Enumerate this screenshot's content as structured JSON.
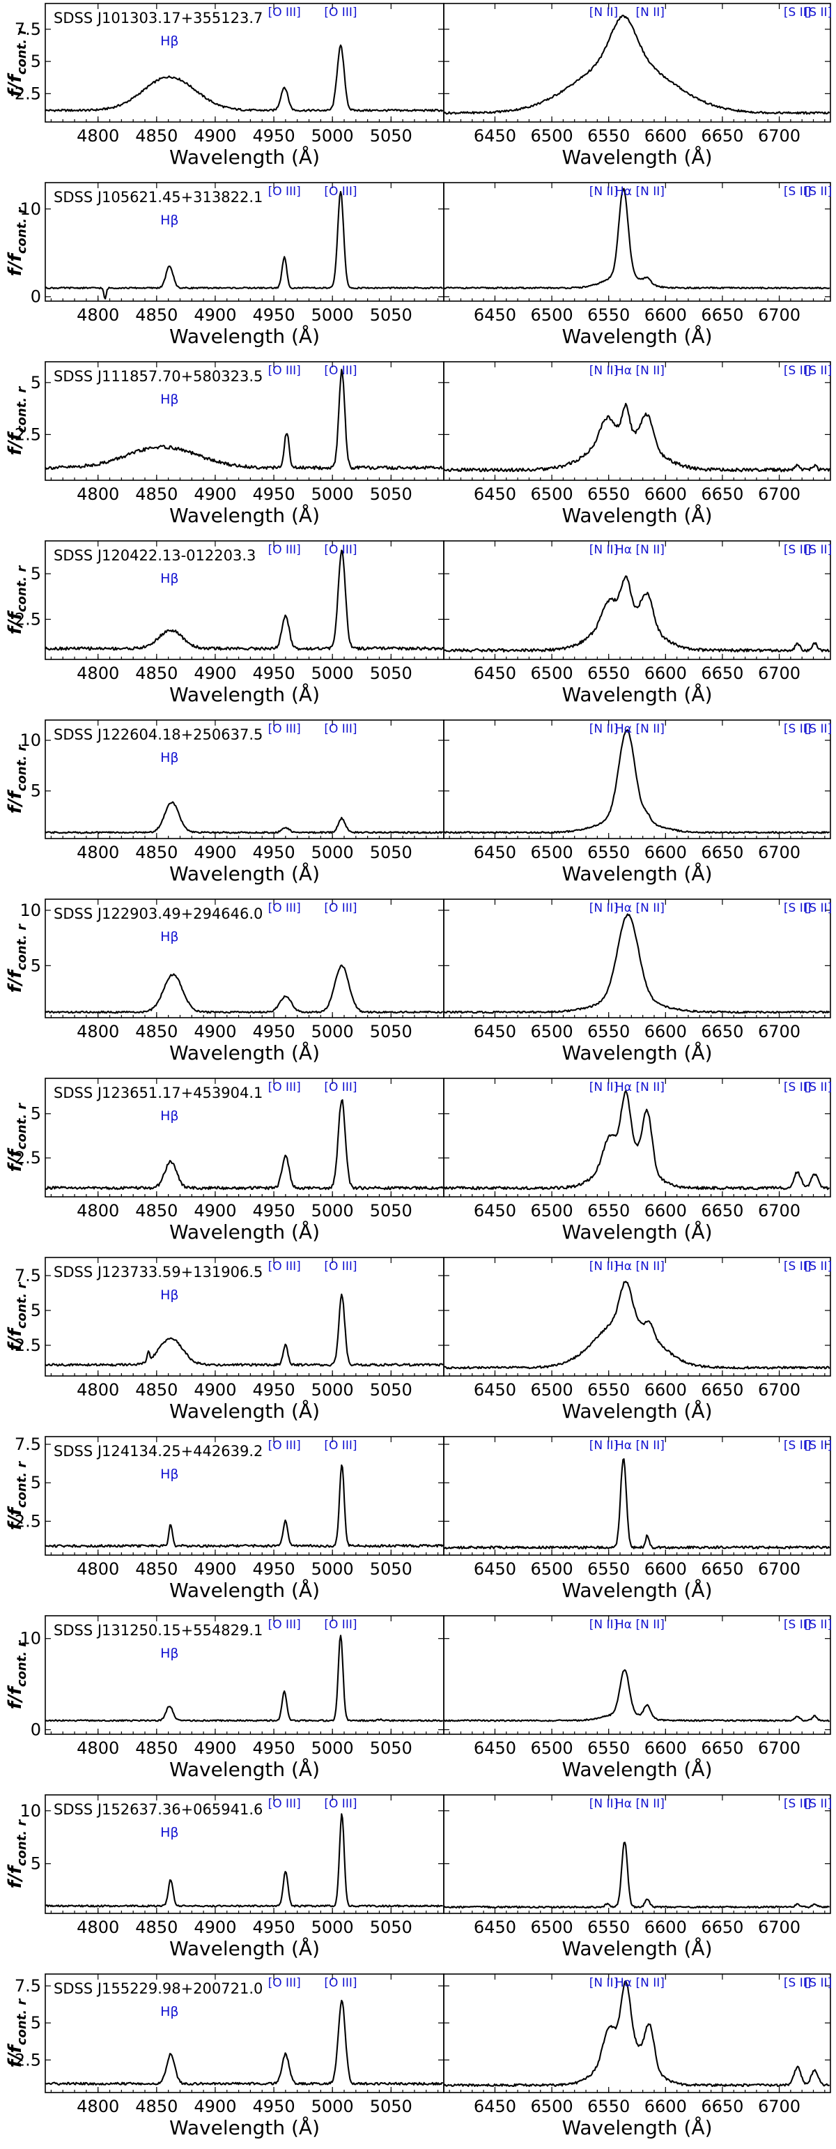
{
  "figure": {
    "xlabel": "Wavelength (Å)",
    "ylabel_main": "f/f",
    "ylabel_sub": "cont. r"
  },
  "line_labels": {
    "hbeta": "Hβ",
    "oiii": "[O III]",
    "nii": "[N II]",
    "halpha": "Hα",
    "sii": "[S II]"
  },
  "colors": {
    "line_label": "#1010d0",
    "spectrum": "#000000"
  },
  "chart_data": [
    {
      "type": "line",
      "object": "SDSS J101303.17+355123.7",
      "yticks": [
        2.5,
        5.0,
        7.5
      ],
      "ylim": [
        0.3,
        9.5
      ],
      "left": {
        "continuum": 1.2,
        "xlim": [
          4755,
          5095
        ],
        "xticks": [
          4800,
          4850,
          4900,
          4950,
          5000,
          5050
        ],
        "peaks": [
          {
            "x": 4861,
            "amp": 2.6,
            "sigma": 22
          },
          {
            "x": 4959,
            "amp": 1.8,
            "sigma": 3
          },
          {
            "x": 5007,
            "amp": 5.0,
            "sigma": 3
          }
        ]
      },
      "right": {
        "continuum": 1.0,
        "xlim": [
          6405,
          6745
        ],
        "xticks": [
          6450,
          6500,
          6550,
          6600,
          6650,
          6700
        ],
        "peaks": [
          {
            "x": 6563,
            "amp": 4.2,
            "sigma": 40
          },
          {
            "x": 6563,
            "amp": 3.3,
            "sigma": 11
          }
        ]
      }
    },
    {
      "type": "line",
      "object": "SDSS J105621.45+313822.1",
      "yticks": [
        0,
        10
      ],
      "ylim": [
        -0.5,
        13
      ],
      "left": {
        "continuum": 1.0,
        "xlim": [
          4755,
          5095
        ],
        "xticks": [
          4800,
          4850,
          4900,
          4950,
          5000,
          5050
        ],
        "peaks": [
          {
            "x": 4861,
            "amp": 2.5,
            "sigma": 3
          },
          {
            "x": 4959,
            "amp": 3.5,
            "sigma": 2
          },
          {
            "x": 5007,
            "amp": 11,
            "sigma": 2.5
          },
          {
            "x": 4806,
            "amp": -1.3,
            "sigma": 1
          }
        ]
      },
      "right": {
        "continuum": 1.0,
        "xlim": [
          6405,
          6745
        ],
        "xticks": [
          6450,
          6500,
          6550,
          6600,
          6650,
          6700
        ],
        "peaks": [
          {
            "x": 6563,
            "amp": 9.8,
            "sigma": 4
          },
          {
            "x": 6563,
            "amp": 1.5,
            "sigma": 15
          },
          {
            "x": 6584,
            "amp": 0.6,
            "sigma": 3
          }
        ]
      }
    },
    {
      "type": "line",
      "object": "SDSS J111857.70+580323.5",
      "yticks": [
        2.5,
        5.0
      ],
      "ylim": [
        0.3,
        6.0
      ],
      "left": {
        "continuum": 0.9,
        "xlim": [
          4755,
          5095
        ],
        "xticks": [
          4800,
          4850,
          4900,
          4950,
          5000,
          5050
        ],
        "peaks": [
          {
            "x": 4855,
            "amp": 1.0,
            "sigma": 30
          },
          {
            "x": 4961,
            "amp": 1.7,
            "sigma": 2
          },
          {
            "x": 5008,
            "amp": 4.7,
            "sigma": 2.5
          }
        ]
      },
      "right": {
        "continuum": 0.8,
        "xlim": [
          6405,
          6745
        ],
        "xticks": [
          6450,
          6500,
          6550,
          6600,
          6650,
          6700
        ],
        "peaks": [
          {
            "x": 6563,
            "amp": 1.8,
            "sigma": 25
          },
          {
            "x": 6548,
            "amp": 1.0,
            "sigma": 6
          },
          {
            "x": 6565,
            "amp": 1.3,
            "sigma": 3
          },
          {
            "x": 6584,
            "amp": 1.4,
            "sigma": 5
          },
          {
            "x": 6716,
            "amp": 0.2,
            "sigma": 2
          },
          {
            "x": 6731,
            "amp": 0.2,
            "sigma": 2
          }
        ]
      }
    },
    {
      "type": "line",
      "object": "SDSS J120422.13-012203.3",
      "yticks": [
        2.5,
        5.0
      ],
      "ylim": [
        0.3,
        6.8
      ],
      "left": {
        "continuum": 0.9,
        "xlim": [
          4755,
          5095
        ],
        "xticks": [
          4800,
          4850,
          4900,
          4950,
          5000,
          5050
        ],
        "peaks": [
          {
            "x": 4862,
            "amp": 1.0,
            "sigma": 10
          },
          {
            "x": 4960,
            "amp": 1.8,
            "sigma": 3
          },
          {
            "x": 5008,
            "amp": 5.4,
            "sigma": 3
          }
        ]
      },
      "right": {
        "continuum": 0.8,
        "xlim": [
          6405,
          6745
        ],
        "xticks": [
          6450,
          6500,
          6550,
          6600,
          6650,
          6700
        ],
        "peaks": [
          {
            "x": 6565,
            "amp": 2.2,
            "sigma": 22
          },
          {
            "x": 6550,
            "amp": 1.0,
            "sigma": 6
          },
          {
            "x": 6565,
            "amp": 1.8,
            "sigma": 4
          },
          {
            "x": 6584,
            "amp": 1.6,
            "sigma": 5
          },
          {
            "x": 6716,
            "amp": 0.4,
            "sigma": 2
          },
          {
            "x": 6731,
            "amp": 0.4,
            "sigma": 2
          }
        ]
      }
    },
    {
      "type": "line",
      "object": "SDSS J122604.18+250637.5",
      "yticks": [
        5,
        10
      ],
      "ylim": [
        0.3,
        12
      ],
      "left": {
        "continuum": 0.9,
        "xlim": [
          4755,
          5095
        ],
        "xticks": [
          4800,
          4850,
          4900,
          4950,
          5000,
          5050
        ],
        "peaks": [
          {
            "x": 4863,
            "amp": 3.0,
            "sigma": 6
          },
          {
            "x": 4960,
            "amp": 0.5,
            "sigma": 3
          },
          {
            "x": 5008,
            "amp": 1.4,
            "sigma": 3
          }
        ]
      },
      "right": {
        "continuum": 0.9,
        "xlim": [
          6405,
          6745
        ],
        "xticks": [
          6450,
          6500,
          6550,
          6600,
          6650,
          6700
        ],
        "peaks": [
          {
            "x": 6566,
            "amp": 8.6,
            "sigma": 7
          },
          {
            "x": 6566,
            "amp": 1.5,
            "sigma": 22
          },
          {
            "x": 6584,
            "amp": 0.6,
            "sigma": 3
          }
        ]
      }
    },
    {
      "type": "line",
      "object": "SDSS J122903.49+294646.0",
      "yticks": [
        5,
        10
      ],
      "ylim": [
        0.3,
        11
      ],
      "left": {
        "continuum": 0.8,
        "xlim": [
          4755,
          5095
        ],
        "xticks": [
          4800,
          4850,
          4900,
          4950,
          5000,
          5050
        ],
        "peaks": [
          {
            "x": 4864,
            "amp": 3.4,
            "sigma": 8
          },
          {
            "x": 4960,
            "amp": 1.4,
            "sigma": 5
          },
          {
            "x": 5008,
            "amp": 4.2,
            "sigma": 6
          }
        ]
      },
      "right": {
        "continuum": 0.8,
        "xlim": [
          6405,
          6745
        ],
        "xticks": [
          6450,
          6500,
          6550,
          6600,
          6650,
          6700
        ],
        "peaks": [
          {
            "x": 6567,
            "amp": 7.6,
            "sigma": 9
          },
          {
            "x": 6567,
            "amp": 1.2,
            "sigma": 25
          }
        ]
      }
    },
    {
      "type": "line",
      "object": "SDSS J123651.17+453904.1",
      "yticks": [
        2.5,
        5.0
      ],
      "ylim": [
        0.3,
        7.0
      ],
      "left": {
        "continuum": 0.8,
        "xlim": [
          4755,
          5095
        ],
        "xticks": [
          4800,
          4850,
          4900,
          4950,
          5000,
          5050
        ],
        "peaks": [
          {
            "x": 4862,
            "amp": 1.5,
            "sigma": 5
          },
          {
            "x": 4960,
            "amp": 1.8,
            "sigma": 3
          },
          {
            "x": 5008,
            "amp": 5.0,
            "sigma": 3
          }
        ]
      },
      "right": {
        "continuum": 0.8,
        "xlim": [
          6405,
          6745
        ],
        "xticks": [
          6450,
          6500,
          6550,
          6600,
          6650,
          6700
        ],
        "peaks": [
          {
            "x": 6565,
            "amp": 2.4,
            "sigma": 18
          },
          {
            "x": 6550,
            "amp": 1.2,
            "sigma": 5
          },
          {
            "x": 6565,
            "amp": 3.0,
            "sigma": 4
          },
          {
            "x": 6584,
            "amp": 3.0,
            "sigma": 4
          },
          {
            "x": 6716,
            "amp": 0.9,
            "sigma": 3
          },
          {
            "x": 6731,
            "amp": 0.8,
            "sigma": 3
          }
        ]
      }
    },
    {
      "type": "line",
      "object": "SDSS J123733.59+131906.5",
      "yticks": [
        2.5,
        5.0,
        7.5
      ],
      "ylim": [
        0.3,
        8.8
      ],
      "left": {
        "continuum": 1.1,
        "xlim": [
          4755,
          5095
        ],
        "xticks": [
          4800,
          4850,
          4900,
          4950,
          5000,
          5050
        ],
        "peaks": [
          {
            "x": 4862,
            "amp": 1.9,
            "sigma": 10
          },
          {
            "x": 4960,
            "amp": 1.4,
            "sigma": 2
          },
          {
            "x": 5008,
            "amp": 5.0,
            "sigma": 2.5
          },
          {
            "x": 4843,
            "amp": 0.6,
            "sigma": 1
          }
        ]
      },
      "right": {
        "continuum": 0.9,
        "xlim": [
          6405,
          6745
        ],
        "xticks": [
          6450,
          6500,
          6550,
          6600,
          6650,
          6700
        ],
        "peaks": [
          {
            "x": 6565,
            "amp": 3.6,
            "sigma": 25
          },
          {
            "x": 6565,
            "amp": 2.6,
            "sigma": 5
          },
          {
            "x": 6586,
            "amp": 0.8,
            "sigma": 3
          }
        ]
      }
    },
    {
      "type": "line",
      "object": "SDSS J124134.25+442639.2",
      "yticks": [
        2.5,
        5.0,
        7.5
      ],
      "ylim": [
        0.3,
        8.0
      ],
      "left": {
        "continuum": 0.9,
        "xlim": [
          4755,
          5095
        ],
        "xticks": [
          4800,
          4850,
          4900,
          4950,
          5000,
          5050
        ],
        "peaks": [
          {
            "x": 4862,
            "amp": 1.4,
            "sigma": 1.5
          },
          {
            "x": 4960,
            "amp": 1.6,
            "sigma": 2
          },
          {
            "x": 5008,
            "amp": 5.3,
            "sigma": 2
          }
        ]
      },
      "right": {
        "continuum": 0.8,
        "xlim": [
          6405,
          6745
        ],
        "xticks": [
          6450,
          6500,
          6550,
          6600,
          6650,
          6700
        ],
        "peaks": [
          {
            "x": 6563,
            "amp": 5.8,
            "sigma": 2.5
          },
          {
            "x": 6584,
            "amp": 0.8,
            "sigma": 1.5
          }
        ]
      }
    },
    {
      "type": "line",
      "object": "SDSS J131250.15+554829.1",
      "yticks": [
        0,
        10
      ],
      "ylim": [
        -0.5,
        12.5
      ],
      "left": {
        "continuum": 1.0,
        "xlim": [
          4755,
          5095
        ],
        "xticks": [
          4800,
          4850,
          4900,
          4950,
          5000,
          5050
        ],
        "peaks": [
          {
            "x": 4861,
            "amp": 1.6,
            "sigma": 3
          },
          {
            "x": 4959,
            "amp": 3.2,
            "sigma": 2
          },
          {
            "x": 5007,
            "amp": 9.4,
            "sigma": 2
          },
          {
            "x": 5040,
            "amp": 0.9,
            "sigma": 1
          },
          {
            "x": 5040,
            "amp": -0.8,
            "sigma": 0.8
          }
        ]
      },
      "right": {
        "continuum": 1.0,
        "xlim": [
          6405,
          6745
        ],
        "xticks": [
          6450,
          6500,
          6550,
          6600,
          6650,
          6700
        ],
        "peaks": [
          {
            "x": 6564,
            "amp": 4.8,
            "sigma": 4
          },
          {
            "x": 6563,
            "amp": 0.8,
            "sigma": 15
          },
          {
            "x": 6584,
            "amp": 1.4,
            "sigma": 3
          },
          {
            "x": 6716,
            "amp": 0.5,
            "sigma": 2
          },
          {
            "x": 6731,
            "amp": 0.5,
            "sigma": 2
          }
        ]
      }
    },
    {
      "type": "line",
      "object": "SDSS J152637.36+065941.6",
      "yticks": [
        5,
        10
      ],
      "ylim": [
        0.3,
        11.5
      ],
      "left": {
        "continuum": 1.0,
        "xlim": [
          4755,
          5095
        ],
        "xticks": [
          4800,
          4850,
          4900,
          4950,
          5000,
          5050
        ],
        "peaks": [
          {
            "x": 4862,
            "amp": 2.5,
            "sigma": 2
          },
          {
            "x": 4960,
            "amp": 3.3,
            "sigma": 2
          },
          {
            "x": 5008,
            "amp": 8.7,
            "sigma": 2
          }
        ]
      },
      "right": {
        "continuum": 0.9,
        "xlim": [
          6405,
          6745
        ],
        "xticks": [
          6450,
          6500,
          6550,
          6600,
          6650,
          6700
        ],
        "peaks": [
          {
            "x": 6564,
            "amp": 6.2,
            "sigma": 2.5
          },
          {
            "x": 6549,
            "amp": 0.3,
            "sigma": 2
          },
          {
            "x": 6584,
            "amp": 0.8,
            "sigma": 2
          },
          {
            "x": 6716,
            "amp": 0.3,
            "sigma": 2
          },
          {
            "x": 6731,
            "amp": 0.3,
            "sigma": 2
          }
        ]
      }
    },
    {
      "type": "line",
      "object": "SDSS J155229.98+200721.0",
      "yticks": [
        2.5,
        5.0,
        7.5
      ],
      "ylim": [
        0.3,
        8.3
      ],
      "left": {
        "continuum": 0.9,
        "xlim": [
          4755,
          5095
        ],
        "xticks": [
          4800,
          4850,
          4900,
          4950,
          5000,
          5050
        ],
        "peaks": [
          {
            "x": 4862,
            "amp": 2.0,
            "sigma": 3.5
          },
          {
            "x": 4960,
            "amp": 2.0,
            "sigma": 3
          },
          {
            "x": 5008,
            "amp": 5.6,
            "sigma": 3
          }
        ]
      },
      "right": {
        "continuum": 0.8,
        "xlim": [
          6405,
          6745
        ],
        "xticks": [
          6450,
          6500,
          6550,
          6600,
          6650,
          6700
        ],
        "peaks": [
          {
            "x": 6565,
            "amp": 3.0,
            "sigma": 18
          },
          {
            "x": 6550,
            "amp": 1.8,
            "sigma": 5
          },
          {
            "x": 6565,
            "amp": 4.0,
            "sigma": 4
          },
          {
            "x": 6586,
            "amp": 2.6,
            "sigma": 4
          },
          {
            "x": 6716,
            "amp": 1.2,
            "sigma": 3
          },
          {
            "x": 6731,
            "amp": 1.0,
            "sigma": 3
          }
        ]
      }
    }
  ]
}
